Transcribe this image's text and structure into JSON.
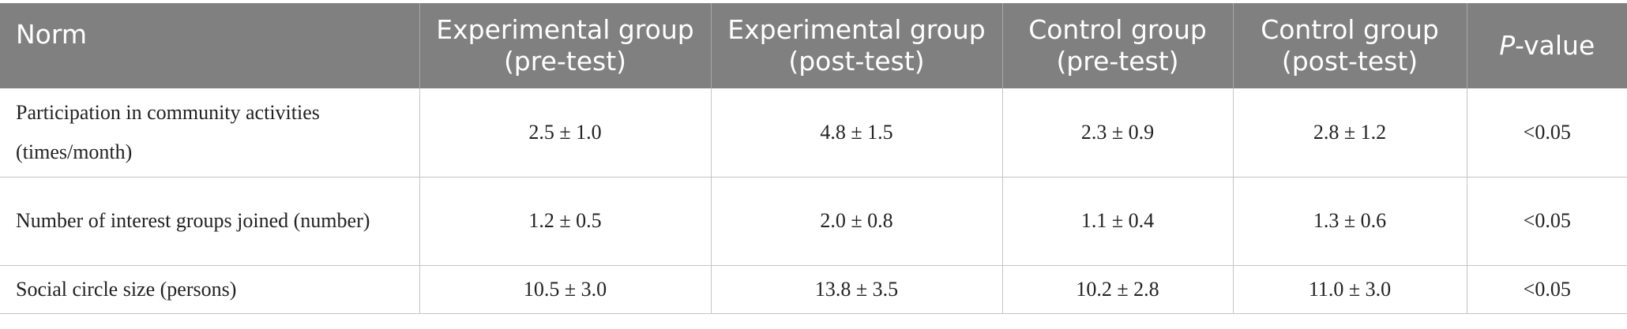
{
  "table": {
    "headers": [
      {
        "text": "Norm"
      },
      {
        "text": "Experimental group (pre-test)"
      },
      {
        "text": "Experimental group (post-test)"
      },
      {
        "text": "Control group (pre-test)"
      },
      {
        "text": "Control group (post-test)"
      },
      {
        "italic": "P",
        "rest": "-value"
      }
    ],
    "rows": [
      {
        "norm": "Participation in community activities (times/month)",
        "exp_pre": "2.5 ± 1.0",
        "exp_post": "4.8 ± 1.5",
        "ctrl_pre": "2.3 ± 0.9",
        "ctrl_post": "2.8 ± 1.2",
        "p": "<0.05"
      },
      {
        "norm": "Number of interest groups joined (number)",
        "exp_pre": "1.2 ± 0.5",
        "exp_post": "2.0 ± 0.8",
        "ctrl_pre": "1.1 ± 0.4",
        "ctrl_post": "1.3 ± 0.6",
        "p": "<0.05"
      },
      {
        "norm": "Social circle size (persons)",
        "exp_pre": "10.5 ± 3.0",
        "exp_post": "13.8 ± 3.5",
        "ctrl_pre": "10.2 ± 2.8",
        "ctrl_post": "11.0 ± 3.0",
        "p": "<0.05"
      }
    ]
  },
  "colors": {
    "header_bg": "#808080",
    "header_text": "#ffffff",
    "grid": "#c4c4c4"
  }
}
